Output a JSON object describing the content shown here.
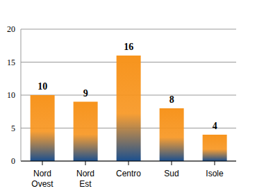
{
  "chart_data": {
    "type": "bar",
    "categories": [
      "Nord Ovest",
      "Nord Est",
      "Centro",
      "Sud",
      "Isole"
    ],
    "values": [
      10,
      9,
      16,
      8,
      4
    ],
    "color": "#f7941d",
    "ylim": [
      0,
      20
    ],
    "yticks": [
      0,
      5,
      10,
      15,
      20
    ],
    "grid": true,
    "data_labels": true
  }
}
